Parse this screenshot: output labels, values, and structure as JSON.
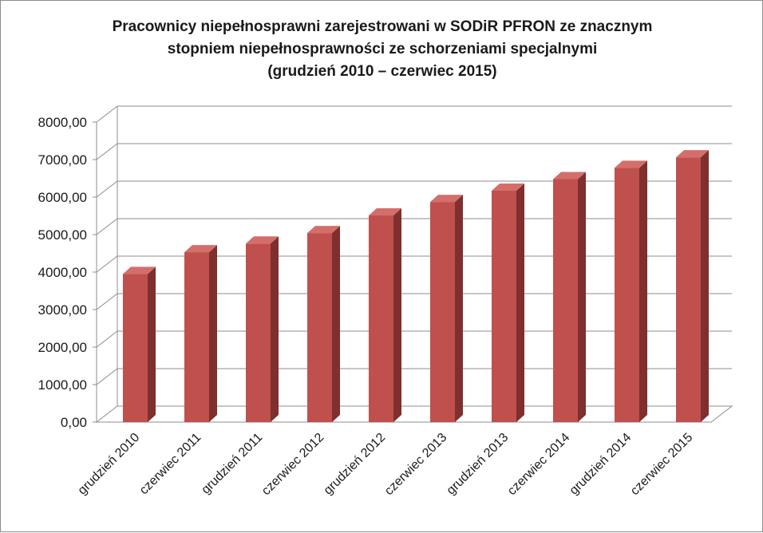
{
  "chart_data": {
    "type": "bar",
    "title_lines": [
      "Pracownicy niepełnosprawni zarejestrowani w SODiR PFRON ze znacznym",
      "stopniem niepełnosprawności ze schorzeniami specjalnymi",
      "(grudzień 2010 – czerwiec 2015)"
    ],
    "categories": [
      "grudzień 2010",
      "czerwiec 2011",
      "grudzień 2011",
      "czerwiec 2012",
      "grudzień 2012",
      "czerwiec 2013",
      "grudzień 2013",
      "czerwiec 2014",
      "grudzień 2014",
      "czerwiec 2015"
    ],
    "values": [
      3950,
      4530,
      4760,
      5040,
      5510,
      5870,
      6170,
      6480,
      6780,
      7060
    ],
    "ylim": [
      0,
      8000
    ],
    "yticks": [
      "0,00",
      "1000,00",
      "2000,00",
      "3000,00",
      "4000,00",
      "5000,00",
      "6000,00",
      "7000,00",
      "8000,00"
    ],
    "xlabel": "",
    "ylabel": "",
    "grid": true,
    "legend": "none",
    "style": "3d-column",
    "colors": {
      "bar_front": "#c0504d",
      "bar_top": "#d46e6b",
      "bar_side": "#7f2f2d",
      "grid": "#8c8c8c"
    }
  }
}
